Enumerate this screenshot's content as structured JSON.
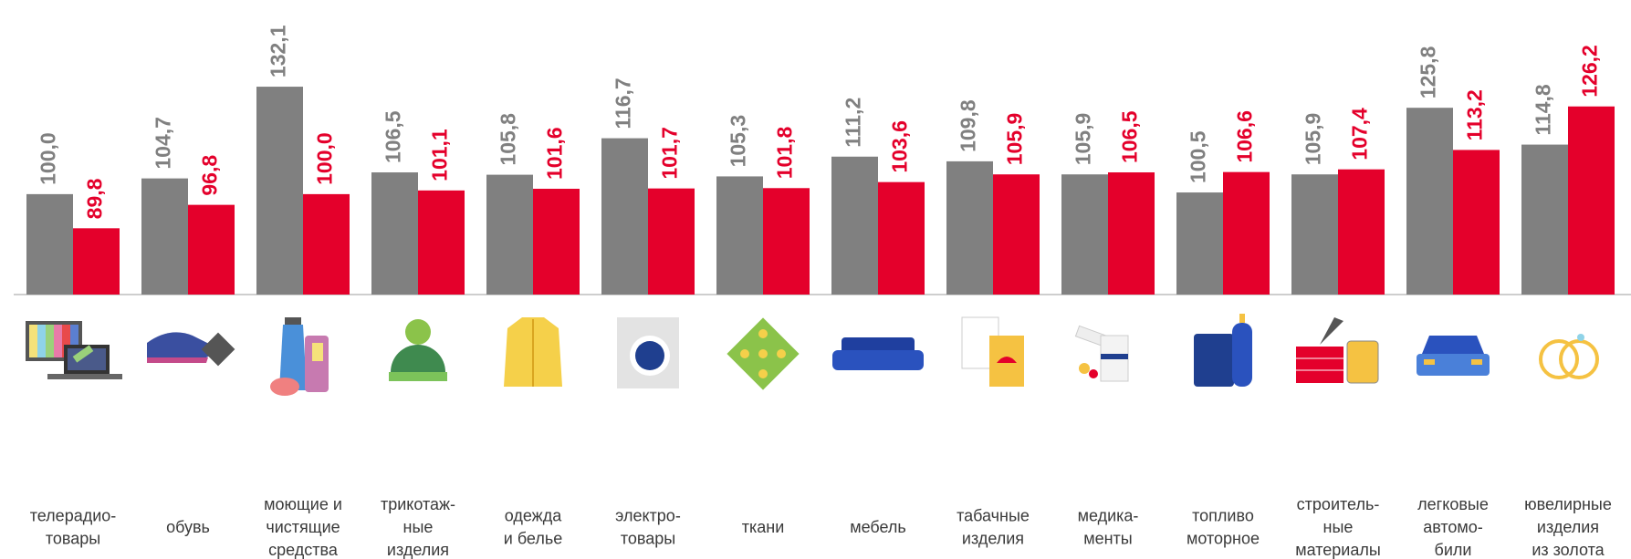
{
  "chart_data": {
    "type": "bar",
    "categories": [
      [
        "телерадио-",
        "товары"
      ],
      [
        "обувь"
      ],
      [
        "моющие и",
        "чистящие",
        "средства"
      ],
      [
        "трикотаж-",
        "ные",
        "изделия"
      ],
      [
        "одежда",
        "и белье"
      ],
      [
        "электро-",
        "товары"
      ],
      [
        "ткани"
      ],
      [
        "мебель"
      ],
      [
        "табачные",
        "изделия"
      ],
      [
        "медика-",
        "менты"
      ],
      [
        "топливо",
        "моторное"
      ],
      [
        "строитель-",
        "ные",
        "материалы"
      ],
      [
        "легковые",
        "автомо-",
        "били"
      ],
      [
        "ювелирные",
        "изделия",
        "из золота"
      ]
    ],
    "series": [
      {
        "color": "#808080",
        "values": [
          100.0,
          104.7,
          132.1,
          106.5,
          105.8,
          116.7,
          105.3,
          111.2,
          109.8,
          105.9,
          100.5,
          105.9,
          125.8,
          114.8
        ],
        "value_labels": [
          "100,0",
          "104,7",
          "132,1",
          "106,5",
          "105,8",
          "116,7",
          "105,3",
          "111,2",
          "109,8",
          "105,9",
          "100,5",
          "105,9",
          "125,8",
          "114,8"
        ]
      },
      {
        "color": "#e4002b",
        "values": [
          89.8,
          96.8,
          100.0,
          101.1,
          101.6,
          101.7,
          101.8,
          103.6,
          105.9,
          106.5,
          106.6,
          107.4,
          113.2,
          126.2
        ],
        "value_labels": [
          "89,8",
          "96,8",
          "100,0",
          "101,1",
          "101,6",
          "101,7",
          "101,8",
          "103,6",
          "105,9",
          "106,5",
          "106,6",
          "107,4",
          "113,2",
          "126,2"
        ]
      }
    ],
    "ylim": [
      70,
      158
    ]
  }
}
